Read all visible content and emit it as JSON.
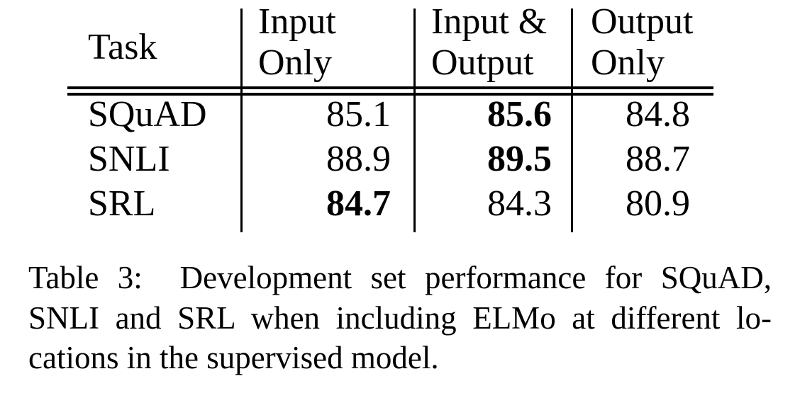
{
  "colors": {
    "text": "#000000",
    "rules": "#000000",
    "background": "#ffffff"
  },
  "table": {
    "header": {
      "task": "Task",
      "columns": [
        {
          "line1": "Input",
          "line2": "Only"
        },
        {
          "line1": "Input &",
          "line2": "Output"
        },
        {
          "line1": "Output",
          "line2": "Only"
        }
      ]
    },
    "rows": [
      {
        "task": "SQuAD",
        "input_only": "85.1",
        "input_output": "85.6",
        "output_only": "84.8",
        "bold": "input_output"
      },
      {
        "task": "SNLI",
        "input_only": "88.9",
        "input_output": "89.5",
        "output_only": "88.7",
        "bold": "input_output"
      },
      {
        "task": "SRL",
        "input_only": "84.7",
        "input_output": "84.3",
        "output_only": "80.9",
        "bold": "input_only"
      }
    ]
  },
  "caption": {
    "label": "Table 3:",
    "lines": [
      "Table 3:  Development set performance for SQuAD,",
      "SNLI and SRL when including ELMo at different lo-",
      "cations in the supervised model."
    ]
  }
}
